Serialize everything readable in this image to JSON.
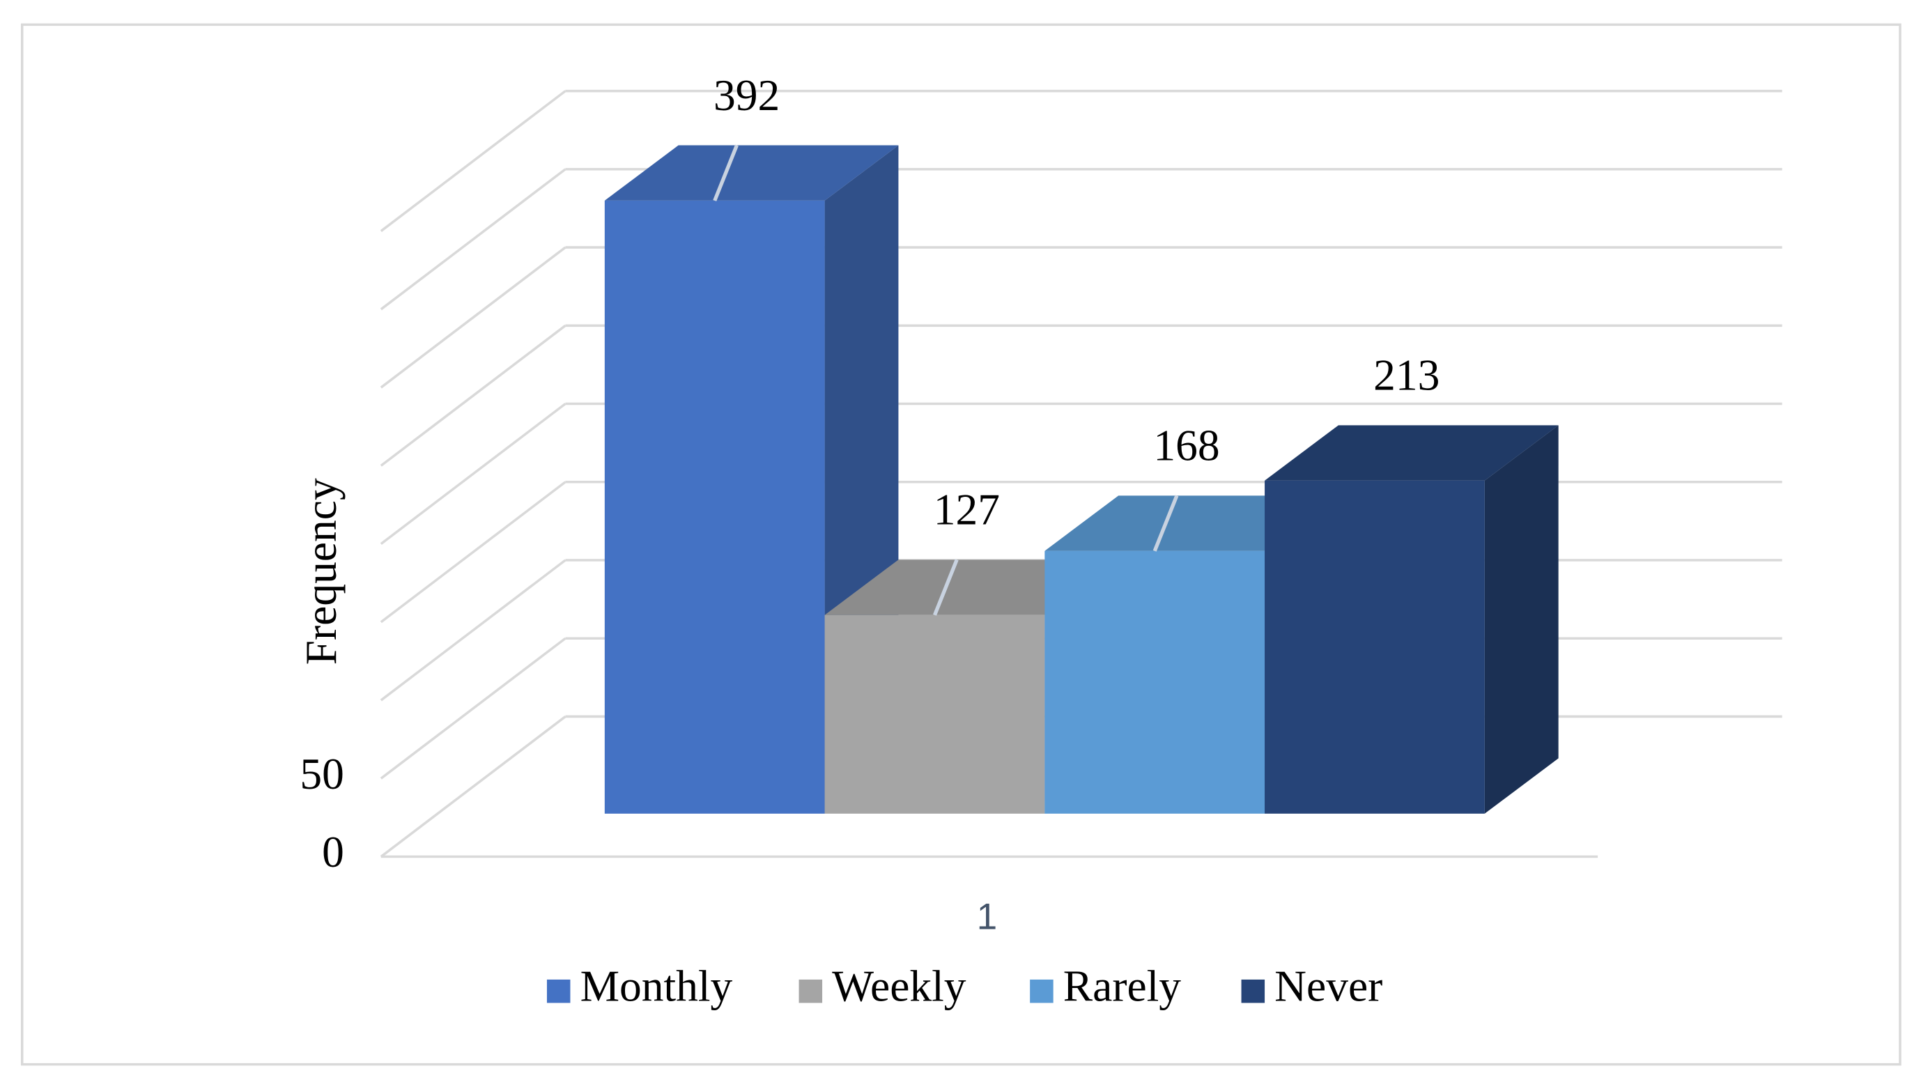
{
  "chart_data": {
    "type": "bar",
    "ylabel": "Frequency",
    "categories": [
      "1"
    ],
    "series": [
      {
        "name": "Monthly",
        "color": "#4472c4",
        "values": [
          392
        ]
      },
      {
        "name": "Weekly",
        "color": "#a5a5a5",
        "values": [
          127
        ]
      },
      {
        "name": "Rarely",
        "color": "#5b9bd5",
        "values": [
          168
        ]
      },
      {
        "name": "Never",
        "color": "#264478",
        "values": [
          213
        ]
      }
    ],
    "ylim": [
      0,
      400
    ],
    "yticks": [
      0,
      50
    ],
    "grid": true,
    "legend": "bottom"
  }
}
